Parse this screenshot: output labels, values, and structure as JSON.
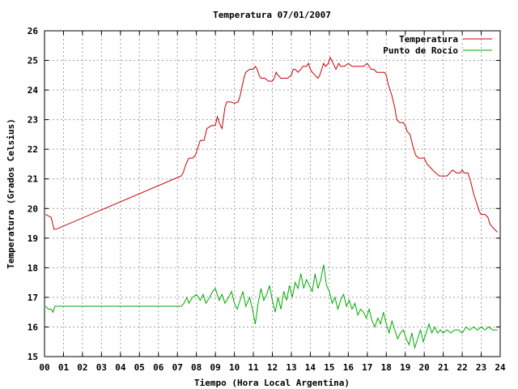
{
  "chart_data": {
    "type": "line",
    "title": "Temperatura 07/01/2007",
    "xlabel": "Tiempo (Hora Local Argentina)",
    "ylabel": "Temperatura (Grados Celsius)",
    "xlim": [
      0,
      24
    ],
    "ylim": [
      15,
      26
    ],
    "x_ticks": [
      "00",
      "01",
      "02",
      "03",
      "04",
      "05",
      "06",
      "07",
      "08",
      "09",
      "10",
      "11",
      "12",
      "13",
      "14",
      "15",
      "16",
      "17",
      "18",
      "19",
      "20",
      "21",
      "22",
      "23",
      "24"
    ],
    "y_ticks": [
      "15",
      "16",
      "17",
      "18",
      "19",
      "20",
      "21",
      "22",
      "23",
      "24",
      "25",
      "26"
    ],
    "grid": true,
    "legend_position": "top-right",
    "series": [
      {
        "name": "Temperatura",
        "color": "#cc0000",
        "points": [
          [
            0.05,
            19.8
          ],
          [
            0.35,
            19.7
          ],
          [
            0.5,
            19.3
          ],
          [
            0.6,
            19.3
          ],
          [
            7.2,
            21.1
          ],
          [
            7.3,
            21.2
          ],
          [
            7.45,
            21.5
          ],
          [
            7.6,
            21.7
          ],
          [
            7.8,
            21.7
          ],
          [
            7.95,
            21.8
          ],
          [
            8.1,
            22.1
          ],
          [
            8.2,
            22.3
          ],
          [
            8.4,
            22.3
          ],
          [
            8.55,
            22.7
          ],
          [
            8.8,
            22.8
          ],
          [
            9.0,
            22.8
          ],
          [
            9.1,
            23.1
          ],
          [
            9.2,
            22.9
          ],
          [
            9.35,
            22.7
          ],
          [
            9.5,
            23.4
          ],
          [
            9.6,
            23.6
          ],
          [
            9.8,
            23.6
          ],
          [
            10.0,
            23.55
          ],
          [
            10.2,
            23.6
          ],
          [
            10.3,
            23.8
          ],
          [
            10.4,
            24.1
          ],
          [
            10.5,
            24.4
          ],
          [
            10.6,
            24.6
          ],
          [
            10.8,
            24.7
          ],
          [
            11.0,
            24.7
          ],
          [
            11.1,
            24.8
          ],
          [
            11.2,
            24.7
          ],
          [
            11.3,
            24.5
          ],
          [
            11.4,
            24.4
          ],
          [
            11.6,
            24.4
          ],
          [
            11.8,
            24.3
          ],
          [
            12.0,
            24.3
          ],
          [
            12.1,
            24.4
          ],
          [
            12.2,
            24.6
          ],
          [
            12.3,
            24.5
          ],
          [
            12.45,
            24.4
          ],
          [
            12.6,
            24.4
          ],
          [
            12.8,
            24.4
          ],
          [
            13.0,
            24.5
          ],
          [
            13.1,
            24.7
          ],
          [
            13.2,
            24.7
          ],
          [
            13.35,
            24.6
          ],
          [
            13.5,
            24.7
          ],
          [
            13.6,
            24.8
          ],
          [
            13.8,
            24.8
          ],
          [
            13.9,
            24.9
          ],
          [
            14.0,
            24.7
          ],
          [
            14.1,
            24.6
          ],
          [
            14.25,
            24.5
          ],
          [
            14.4,
            24.4
          ],
          [
            14.5,
            24.5
          ],
          [
            14.6,
            24.7
          ],
          [
            14.7,
            24.9
          ],
          [
            14.8,
            24.8
          ],
          [
            14.95,
            24.9
          ],
          [
            15.05,
            25.1
          ],
          [
            15.2,
            24.9
          ],
          [
            15.35,
            24.7
          ],
          [
            15.5,
            24.9
          ],
          [
            15.6,
            24.8
          ],
          [
            15.8,
            24.8
          ],
          [
            16.0,
            24.9
          ],
          [
            16.2,
            24.8
          ],
          [
            16.4,
            24.8
          ],
          [
            16.6,
            24.8
          ],
          [
            16.8,
            24.8
          ],
          [
            17.0,
            24.9
          ],
          [
            17.2,
            24.7
          ],
          [
            17.35,
            24.7
          ],
          [
            17.5,
            24.6
          ],
          [
            17.7,
            24.6
          ],
          [
            17.9,
            24.6
          ],
          [
            18.0,
            24.5
          ],
          [
            18.1,
            24.2
          ],
          [
            18.3,
            23.8
          ],
          [
            18.45,
            23.4
          ],
          [
            18.55,
            23.0
          ],
          [
            18.7,
            22.9
          ],
          [
            18.9,
            22.9
          ],
          [
            19.0,
            22.8
          ],
          [
            19.1,
            22.6
          ],
          [
            19.25,
            22.5
          ],
          [
            19.4,
            22.1
          ],
          [
            19.55,
            21.8
          ],
          [
            19.7,
            21.7
          ],
          [
            19.9,
            21.7
          ],
          [
            20.0,
            21.7
          ],
          [
            20.15,
            21.5
          ],
          [
            20.3,
            21.4
          ],
          [
            20.45,
            21.3
          ],
          [
            20.6,
            21.2
          ],
          [
            20.8,
            21.1
          ],
          [
            21.0,
            21.1
          ],
          [
            21.2,
            21.1
          ],
          [
            21.35,
            21.2
          ],
          [
            21.5,
            21.3
          ],
          [
            21.7,
            21.2
          ],
          [
            21.9,
            21.2
          ],
          [
            22.0,
            21.3
          ],
          [
            22.1,
            21.2
          ],
          [
            22.3,
            21.2
          ],
          [
            22.45,
            20.9
          ],
          [
            22.6,
            20.5
          ],
          [
            22.75,
            20.2
          ],
          [
            22.9,
            19.9
          ],
          [
            23.0,
            19.8
          ],
          [
            23.2,
            19.8
          ],
          [
            23.35,
            19.7
          ],
          [
            23.45,
            19.5
          ],
          [
            23.55,
            19.4
          ],
          [
            23.7,
            19.3
          ],
          [
            23.85,
            19.2
          ]
        ]
      },
      {
        "name": "Punto de Rocío",
        "color": "#00aa00",
        "points": [
          [
            0.05,
            16.7
          ],
          [
            0.2,
            16.6
          ],
          [
            0.35,
            16.6
          ],
          [
            0.45,
            16.5
          ],
          [
            0.55,
            16.7
          ],
          [
            7.2,
            16.7
          ],
          [
            7.35,
            16.8
          ],
          [
            7.5,
            17.0
          ],
          [
            7.6,
            16.8
          ],
          [
            7.8,
            17.0
          ],
          [
            8.0,
            17.1
          ],
          [
            8.2,
            16.9
          ],
          [
            8.35,
            17.1
          ],
          [
            8.5,
            16.8
          ],
          [
            8.7,
            17.0
          ],
          [
            8.85,
            17.2
          ],
          [
            9.0,
            17.3
          ],
          [
            9.2,
            16.9
          ],
          [
            9.35,
            17.1
          ],
          [
            9.5,
            16.8
          ],
          [
            9.7,
            17.0
          ],
          [
            9.85,
            17.2
          ],
          [
            10.0,
            16.8
          ],
          [
            10.15,
            16.6
          ],
          [
            10.3,
            16.9
          ],
          [
            10.45,
            17.2
          ],
          [
            10.6,
            16.7
          ],
          [
            10.8,
            17.0
          ],
          [
            10.95,
            16.6
          ],
          [
            11.1,
            16.1
          ],
          [
            11.25,
            16.8
          ],
          [
            11.4,
            17.3
          ],
          [
            11.55,
            16.9
          ],
          [
            11.7,
            17.1
          ],
          [
            11.85,
            17.4
          ],
          [
            12.0,
            16.9
          ],
          [
            12.15,
            16.5
          ],
          [
            12.3,
            17.0
          ],
          [
            12.45,
            16.6
          ],
          [
            12.6,
            17.2
          ],
          [
            12.75,
            16.9
          ],
          [
            12.9,
            17.4
          ],
          [
            13.05,
            17.0
          ],
          [
            13.2,
            17.5
          ],
          [
            13.35,
            17.3
          ],
          [
            13.5,
            17.8
          ],
          [
            13.65,
            17.3
          ],
          [
            13.8,
            17.6
          ],
          [
            13.95,
            17.4
          ],
          [
            14.1,
            17.2
          ],
          [
            14.25,
            17.8
          ],
          [
            14.4,
            17.3
          ],
          [
            14.55,
            17.6
          ],
          [
            14.7,
            18.1
          ],
          [
            14.85,
            17.4
          ],
          [
            15.0,
            17.2
          ],
          [
            15.15,
            16.8
          ],
          [
            15.3,
            17.0
          ],
          [
            15.45,
            16.6
          ],
          [
            15.6,
            16.9
          ],
          [
            15.75,
            17.1
          ],
          [
            15.9,
            16.7
          ],
          [
            16.05,
            16.9
          ],
          [
            16.2,
            16.6
          ],
          [
            16.35,
            16.8
          ],
          [
            16.5,
            16.4
          ],
          [
            16.65,
            16.6
          ],
          [
            16.8,
            16.5
          ],
          [
            16.95,
            16.3
          ],
          [
            17.1,
            16.6
          ],
          [
            17.25,
            16.2
          ],
          [
            17.4,
            16.0
          ],
          [
            17.55,
            16.3
          ],
          [
            17.7,
            16.1
          ],
          [
            17.85,
            16.5
          ],
          [
            18.0,
            16.1
          ],
          [
            18.15,
            15.8
          ],
          [
            18.3,
            16.2
          ],
          [
            18.45,
            15.9
          ],
          [
            18.6,
            15.6
          ],
          [
            18.75,
            15.8
          ],
          [
            18.9,
            15.9
          ],
          [
            19.05,
            15.6
          ],
          [
            19.2,
            15.4
          ],
          [
            19.35,
            15.8
          ],
          [
            19.5,
            15.3
          ],
          [
            19.65,
            15.6
          ],
          [
            19.8,
            15.9
          ],
          [
            19.95,
            15.5
          ],
          [
            20.1,
            15.8
          ],
          [
            20.25,
            16.1
          ],
          [
            20.4,
            15.8
          ],
          [
            20.55,
            16.0
          ],
          [
            20.7,
            15.8
          ],
          [
            20.85,
            15.9
          ],
          [
            21.0,
            15.8
          ],
          [
            21.2,
            15.9
          ],
          [
            21.4,
            15.8
          ],
          [
            21.6,
            15.9
          ],
          [
            21.8,
            15.9
          ],
          [
            22.0,
            15.8
          ],
          [
            22.2,
            16.0
          ],
          [
            22.4,
            15.9
          ],
          [
            22.6,
            16.0
          ],
          [
            22.8,
            15.9
          ],
          [
            23.0,
            16.0
          ],
          [
            23.2,
            15.9
          ],
          [
            23.4,
            16.0
          ],
          [
            23.6,
            15.9
          ],
          [
            23.85,
            15.9
          ]
        ]
      }
    ]
  }
}
